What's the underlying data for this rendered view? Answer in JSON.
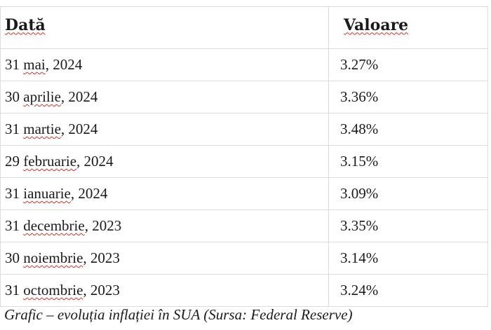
{
  "table": {
    "headers": [
      "Dată",
      "Valoare"
    ],
    "rows": [
      {
        "day": "31",
        "month": "mai",
        "year": ", 2024",
        "value": "3.27%"
      },
      {
        "day": "30",
        "month": "aprilie",
        "year": ", 2024",
        "value": "3.36%"
      },
      {
        "day": "31",
        "month": "martie",
        "year": ", 2024",
        "value": "3.48%"
      },
      {
        "day": "29",
        "month": "februarie",
        "year": ", 2024",
        "value": "3.15%"
      },
      {
        "day": "31",
        "month": "ianuarie",
        "year": ", 2024",
        "value": "3.09%"
      },
      {
        "day": "31",
        "month": "decembrie",
        "year": ", 2023",
        "value": "3.35%"
      },
      {
        "day": "30",
        "month": "noiembrie",
        "year": ", 2023",
        "value": "3.14%"
      },
      {
        "day": "31",
        "month": "octombrie",
        "year": ", 2023",
        "value": "3.24%"
      }
    ]
  },
  "caption": "Grafic – evoluția inflației în SUA (Sursa: Federal Reserve)",
  "colors": {
    "text": "#1a1a1a",
    "grid": "#dcdcdc",
    "spellcheck_underline": "#d93025"
  }
}
